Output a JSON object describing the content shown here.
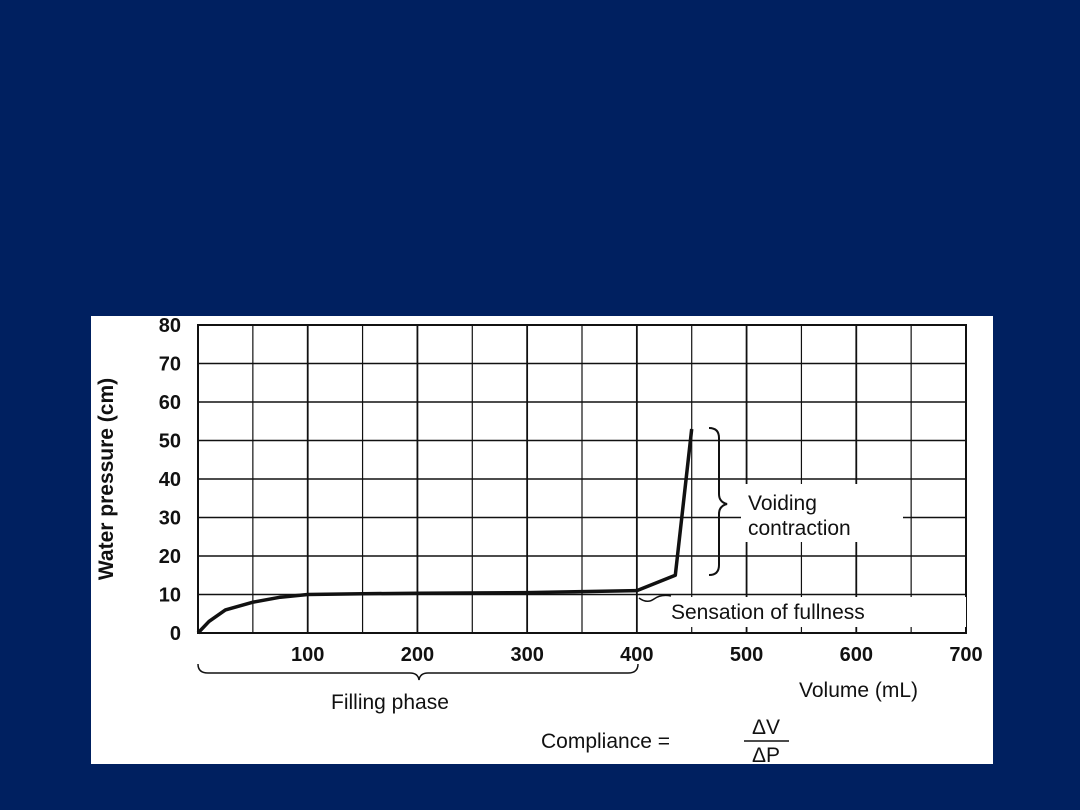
{
  "colors": {
    "slide_background": "#002060",
    "panel_background": "#ffffff",
    "ink": "#111111"
  },
  "chart_data": {
    "type": "line",
    "title": "",
    "xlabel": "Volume (mL)",
    "ylabel": "Water pressure (cm)",
    "xlim": [
      0,
      700
    ],
    "ylim": [
      0,
      80
    ],
    "grid": true,
    "x_ticks": [
      100,
      200,
      300,
      400,
      500,
      600,
      700
    ],
    "x_tick_labels": [
      "100",
      "200",
      "300",
      "400",
      "500",
      "600",
      "700"
    ],
    "y_ticks": [
      0,
      10,
      20,
      30,
      40,
      50,
      60,
      70,
      80
    ],
    "y_tick_labels": [
      "0",
      "10",
      "20",
      "30",
      "40",
      "50",
      "60",
      "70",
      "80"
    ],
    "series": [
      {
        "x": [
          0,
          10,
          25,
          50,
          75,
          100,
          150,
          200,
          300,
          400,
          435,
          450
        ],
        "y": [
          0,
          3,
          6,
          8,
          9.3,
          10,
          10.2,
          10.3,
          10.5,
          11,
          15,
          53
        ]
      }
    ],
    "annotations": {
      "voiding_line1": "Voiding",
      "voiding_line2": "contraction",
      "sensation": "Sensation of fullness",
      "filling": "Filling phase",
      "compliance_label": "Compliance =",
      "compliance_numerator": "ΔV",
      "compliance_denominator": "ΔP"
    }
  }
}
